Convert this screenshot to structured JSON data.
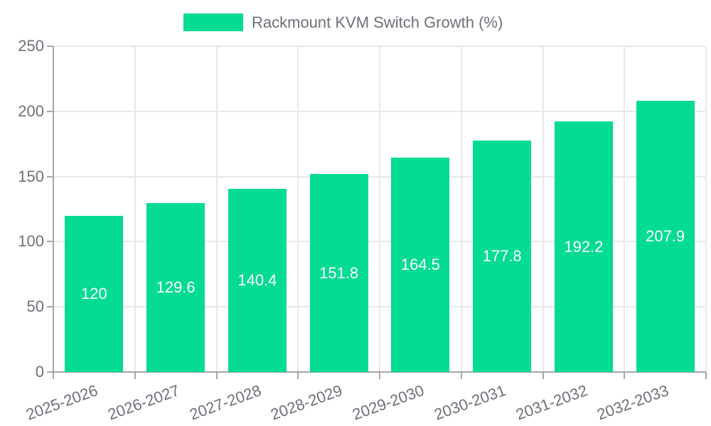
{
  "legend": {
    "entries": [
      "Rackmount KVM Switch Growth (%)"
    ]
  },
  "chart_data": {
    "type": "bar",
    "title": "Rackmount KVM Switch Growth (%)",
    "legend_entries": [
      "Rackmount KVM Switch Growth (%)"
    ],
    "legend_position": "top",
    "categories": [
      "2025-2026",
      "2026-2027",
      "2027-2028",
      "2028-2029",
      "2029-2030",
      "2030-2031",
      "2031-2032",
      "2032-2033"
    ],
    "values": [
      120,
      129.6,
      140.4,
      151.8,
      164.5,
      177.8,
      192.2,
      207.9
    ],
    "xlabel": "",
    "ylabel": "",
    "ylim": [
      0,
      250
    ],
    "y_ticks": [
      0,
      50,
      100,
      150,
      200,
      250
    ],
    "grid": true,
    "x_label_rotation_deg": -20,
    "colors": {
      "bar": "#05DB93",
      "bar_value_text": "#ffffff",
      "axis_text": "#6E7079",
      "axis_line": "#A6A6A6",
      "grid_line": "#E8E8E8",
      "background": "#ffffff"
    }
  }
}
